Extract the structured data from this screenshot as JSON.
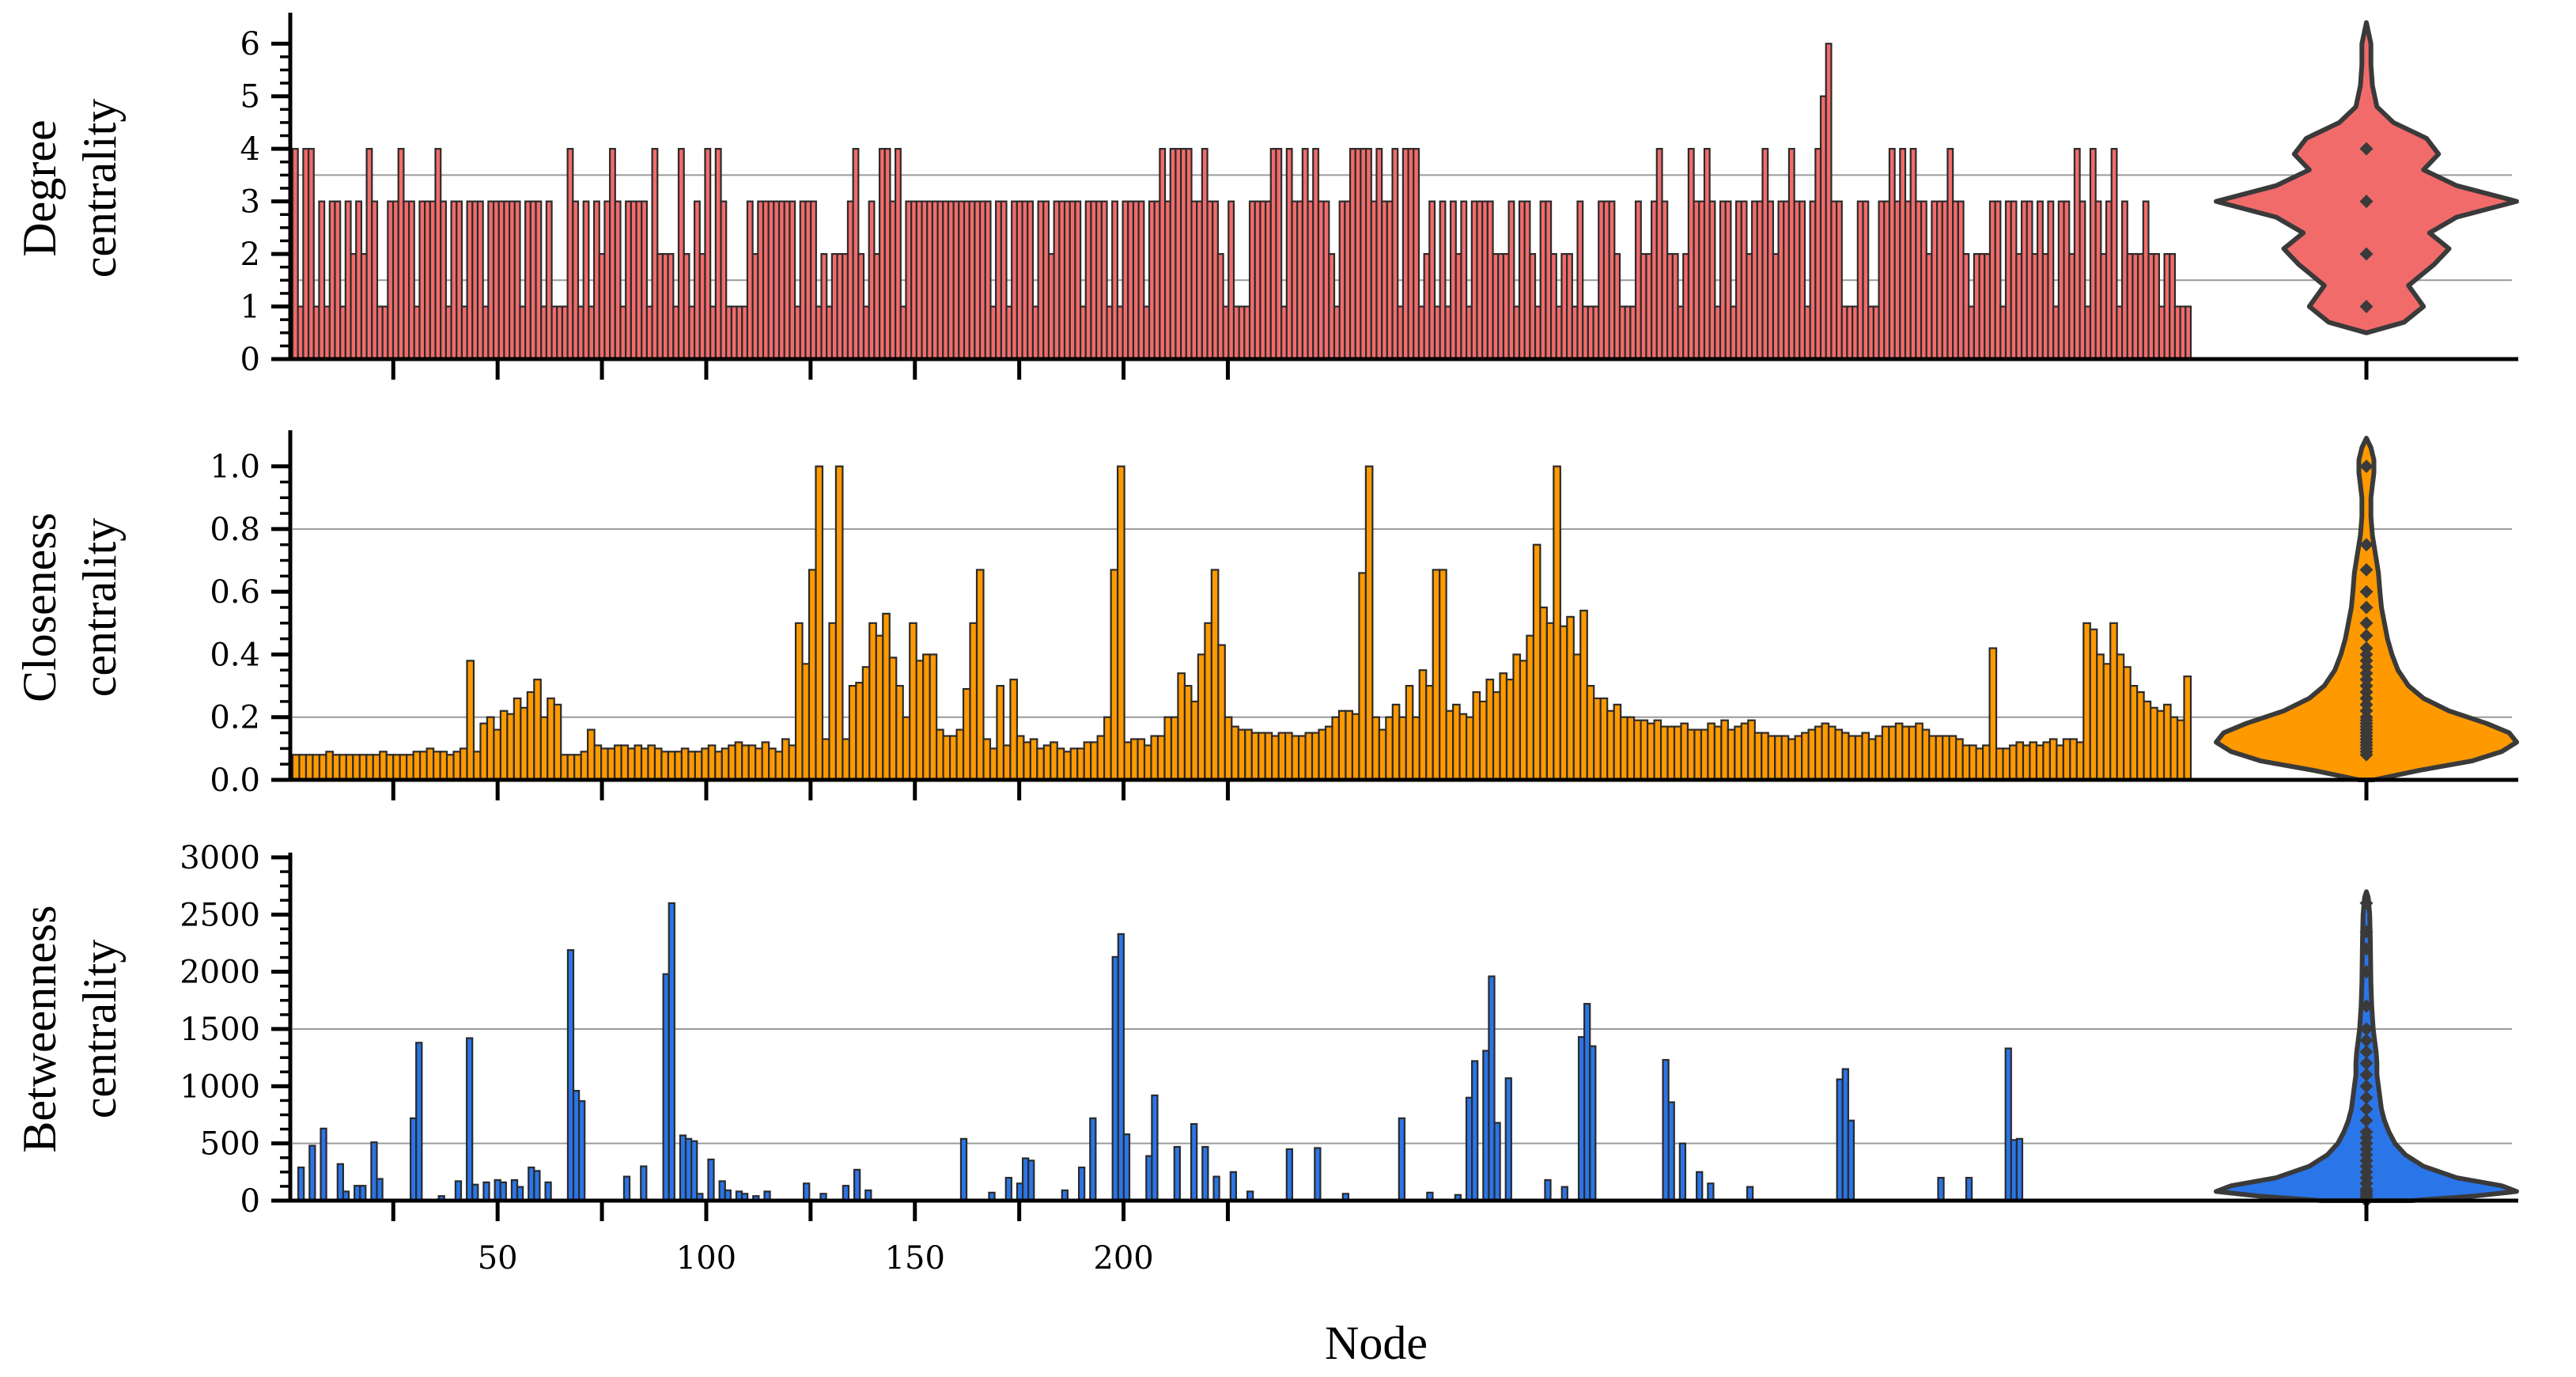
{
  "figure": {
    "xlabel": "Node",
    "x_tick_labels": [
      "50",
      "100",
      "150",
      "200"
    ]
  },
  "chart_data": [
    {
      "type": "bar",
      "id": "degree",
      "ylabel_lines": [
        "Degree",
        "centrality"
      ],
      "ylim": [
        0,
        6.5
      ],
      "yticks": [
        0,
        1,
        2,
        3,
        4,
        5,
        6
      ],
      "ytick_labels": [
        "0",
        "1",
        "2",
        "3",
        "4",
        "5",
        "6"
      ],
      "gridlines": [
        1.5,
        3.5
      ],
      "color": "#F26B6B",
      "x_start": 1,
      "values": [
        4,
        1,
        4,
        4,
        1,
        3,
        1,
        3,
        3,
        1,
        3,
        2,
        3,
        2,
        4,
        3,
        1,
        1,
        3,
        3,
        4,
        3,
        3,
        1,
        3,
        3,
        3,
        4,
        3,
        1,
        3,
        3,
        1,
        3,
        3,
        3,
        1,
        3,
        3,
        3,
        3,
        3,
        3,
        1,
        3,
        3,
        3,
        1,
        3,
        1,
        1,
        1,
        4,
        3,
        1,
        3,
        1,
        3,
        2,
        3,
        4,
        3,
        1,
        3,
        3,
        3,
        3,
        1,
        4,
        2,
        2,
        2,
        1,
        4,
        2,
        1,
        3,
        2,
        4,
        1,
        4,
        3,
        1,
        1,
        1,
        1,
        3,
        2,
        3,
        3,
        3,
        3,
        3,
        3,
        3,
        1,
        3,
        3,
        3,
        1,
        2,
        1,
        2,
        2,
        2,
        3,
        4,
        2,
        1,
        3,
        2,
        4,
        4,
        3,
        4,
        1,
        3,
        3,
        3,
        3,
        3,
        3,
        3,
        3,
        3,
        3,
        3,
        3,
        3,
        3,
        3,
        3,
        1,
        3,
        3,
        1,
        3,
        3,
        3,
        3,
        1,
        3,
        3,
        2,
        3,
        3,
        3,
        3,
        3,
        1,
        3,
        3,
        3,
        3,
        1,
        3,
        1,
        3,
        3,
        3,
        3,
        1,
        3,
        3,
        4,
        3,
        4,
        4,
        4,
        4,
        3,
        3,
        4,
        3,
        3,
        2,
        1,
        3,
        1,
        1,
        1,
        3,
        3,
        3,
        3,
        4,
        4,
        1,
        4,
        3,
        3,
        4,
        3,
        4,
        3,
        3,
        2,
        1,
        3,
        3,
        4,
        4,
        4,
        4,
        3,
        4,
        3,
        3,
        4,
        1,
        4,
        4,
        4,
        1,
        2,
        3,
        1,
        3,
        1,
        3,
        2,
        3,
        1,
        3,
        3,
        3,
        3,
        2,
        2,
        2,
        3,
        1,
        3,
        3,
        2,
        1,
        3,
        3,
        2,
        1,
        2,
        2,
        1,
        3,
        1,
        1,
        1,
        3,
        3,
        3,
        2,
        1,
        1,
        1,
        3,
        2,
        2,
        3,
        4,
        3,
        2,
        2,
        1,
        2,
        4,
        3,
        3,
        4,
        3,
        1,
        3,
        3,
        1,
        3,
        3,
        2,
        3,
        3,
        4,
        3,
        2,
        3,
        3,
        4,
        3,
        3,
        1,
        3,
        4,
        5,
        6,
        3,
        3,
        1,
        1,
        1,
        3,
        3,
        1,
        1,
        3,
        3,
        4,
        3,
        4,
        3,
        4,
        3,
        3,
        2,
        3,
        3,
        3,
        4,
        3,
        3,
        2,
        1,
        2,
        2,
        2,
        3,
        3,
        1,
        3,
        3,
        2,
        3,
        3,
        2,
        3,
        2,
        3,
        1,
        3,
        3,
        2,
        4,
        3,
        1,
        4,
        3,
        2,
        3,
        4,
        1,
        3,
        2,
        2,
        2,
        3,
        2,
        2,
        1,
        2,
        2,
        1,
        1,
        1
      ],
      "violin": {
        "points": [
          1,
          2,
          3,
          4
        ],
        "extent": [
          0.5,
          6.4
        ],
        "profile": [
          [
            0.5,
            0.0
          ],
          [
            0.7,
            0.25
          ],
          [
            1.0,
            0.38
          ],
          [
            1.4,
            0.28
          ],
          [
            1.8,
            0.45
          ],
          [
            2.1,
            0.55
          ],
          [
            2.4,
            0.42
          ],
          [
            2.7,
            0.6
          ],
          [
            3.0,
            1.0
          ],
          [
            3.3,
            0.6
          ],
          [
            3.6,
            0.38
          ],
          [
            3.9,
            0.48
          ],
          [
            4.2,
            0.4
          ],
          [
            4.5,
            0.18
          ],
          [
            4.8,
            0.07
          ],
          [
            5.2,
            0.04
          ],
          [
            5.6,
            0.03
          ],
          [
            6.0,
            0.03
          ],
          [
            6.4,
            0.0
          ]
        ]
      }
    },
    {
      "type": "bar",
      "id": "closeness",
      "ylabel_lines": [
        "Closeness",
        "centrality"
      ],
      "ylim": [
        0,
        1.1
      ],
      "yticks": [
        0,
        0.2,
        0.4,
        0.6,
        0.8,
        1.0
      ],
      "ytick_labels": [
        "0.0",
        "0.2",
        "0.4",
        "0.6",
        "0.8",
        "1.0"
      ],
      "gridlines": [
        0.2,
        0.8
      ],
      "color": "#FF9900",
      "x_start": 1,
      "values": [
        0.08,
        0.08,
        0.08,
        0.08,
        0.08,
        0.09,
        0.08,
        0.08,
        0.08,
        0.08,
        0.08,
        0.08,
        0.08,
        0.09,
        0.08,
        0.08,
        0.08,
        0.08,
        0.09,
        0.09,
        0.1,
        0.09,
        0.09,
        0.08,
        0.09,
        0.1,
        0.38,
        0.09,
        0.18,
        0.2,
        0.16,
        0.22,
        0.21,
        0.26,
        0.23,
        0.28,
        0.32,
        0.2,
        0.26,
        0.24,
        0.08,
        0.08,
        0.08,
        0.09,
        0.16,
        0.11,
        0.1,
        0.1,
        0.11,
        0.11,
        0.1,
        0.11,
        0.1,
        0.11,
        0.1,
        0.09,
        0.09,
        0.09,
        0.1,
        0.09,
        0.09,
        0.1,
        0.11,
        0.09,
        0.1,
        0.11,
        0.12,
        0.11,
        0.11,
        0.1,
        0.12,
        0.1,
        0.09,
        0.13,
        0.11,
        0.5,
        0.37,
        0.67,
        1.0,
        0.13,
        0.5,
        1.0,
        0.13,
        0.3,
        0.31,
        0.36,
        0.5,
        0.46,
        0.53,
        0.39,
        0.3,
        0.2,
        0.5,
        0.38,
        0.4,
        0.4,
        0.16,
        0.14,
        0.14,
        0.16,
        0.29,
        0.5,
        0.67,
        0.13,
        0.1,
        0.3,
        0.11,
        0.32,
        0.14,
        0.12,
        0.13,
        0.1,
        0.11,
        0.12,
        0.1,
        0.09,
        0.1,
        0.1,
        0.12,
        0.12,
        0.14,
        0.2,
        0.67,
        1.0,
        0.12,
        0.13,
        0.13,
        0.11,
        0.14,
        0.14,
        0.2,
        0.2,
        0.34,
        0.3,
        0.25,
        0.4,
        0.5,
        0.67,
        0.43,
        0.2,
        0.17,
        0.16,
        0.16,
        0.15,
        0.15,
        0.15,
        0.14,
        0.15,
        0.15,
        0.14,
        0.14,
        0.15,
        0.15,
        0.16,
        0.17,
        0.2,
        0.22,
        0.22,
        0.21,
        0.66,
        1.0,
        0.2,
        0.16,
        0.2,
        0.24,
        0.2,
        0.3,
        0.2,
        0.35,
        0.3,
        0.67,
        0.67,
        0.22,
        0.24,
        0.21,
        0.2,
        0.28,
        0.25,
        0.32,
        0.28,
        0.34,
        0.32,
        0.4,
        0.38,
        0.46,
        0.75,
        0.55,
        0.5,
        1.0,
        0.49,
        0.52,
        0.4,
        0.54,
        0.3,
        0.26,
        0.26,
        0.22,
        0.24,
        0.2,
        0.2,
        0.19,
        0.19,
        0.18,
        0.19,
        0.17,
        0.17,
        0.17,
        0.18,
        0.16,
        0.16,
        0.16,
        0.18,
        0.17,
        0.19,
        0.16,
        0.17,
        0.18,
        0.19,
        0.15,
        0.15,
        0.14,
        0.14,
        0.14,
        0.13,
        0.14,
        0.15,
        0.16,
        0.17,
        0.18,
        0.17,
        0.16,
        0.15,
        0.14,
        0.14,
        0.15,
        0.13,
        0.14,
        0.17,
        0.17,
        0.18,
        0.17,
        0.17,
        0.18,
        0.16,
        0.14,
        0.14,
        0.14,
        0.14,
        0.13,
        0.11,
        0.11,
        0.1,
        0.11,
        0.42,
        0.1,
        0.1,
        0.11,
        0.12,
        0.11,
        0.12,
        0.11,
        0.12,
        0.13,
        0.11,
        0.13,
        0.13,
        0.12,
        0.5,
        0.48,
        0.4,
        0.37,
        0.5,
        0.4,
        0.36,
        0.3,
        0.28,
        0.25,
        0.23,
        0.22,
        0.24,
        0.2,
        0.19,
        0.33
      ],
      "violin": {
        "points": [
          0.08,
          0.09,
          0.1,
          0.11,
          0.12,
          0.13,
          0.14,
          0.15,
          0.16,
          0.17,
          0.18,
          0.19,
          0.2,
          0.22,
          0.24,
          0.26,
          0.28,
          0.3,
          0.32,
          0.34,
          0.36,
          0.38,
          0.4,
          0.42,
          0.46,
          0.5,
          0.55,
          0.6,
          0.67,
          0.75,
          1.0
        ],
        "extent": [
          0.0,
          1.09
        ],
        "profile": [
          [
            0.0,
            0.05
          ],
          [
            0.03,
            0.35
          ],
          [
            0.06,
            0.7
          ],
          [
            0.09,
            0.9
          ],
          [
            0.12,
            1.0
          ],
          [
            0.15,
            0.95
          ],
          [
            0.18,
            0.8
          ],
          [
            0.22,
            0.55
          ],
          [
            0.26,
            0.38
          ],
          [
            0.3,
            0.28
          ],
          [
            0.35,
            0.21
          ],
          [
            0.4,
            0.17
          ],
          [
            0.45,
            0.14
          ],
          [
            0.5,
            0.12
          ],
          [
            0.55,
            0.1
          ],
          [
            0.6,
            0.09
          ],
          [
            0.66,
            0.08
          ],
          [
            0.72,
            0.06
          ],
          [
            0.78,
            0.04
          ],
          [
            0.84,
            0.03
          ],
          [
            0.9,
            0.03
          ],
          [
            0.94,
            0.04
          ],
          [
            0.98,
            0.05
          ],
          [
            1.02,
            0.05
          ],
          [
            1.06,
            0.03
          ],
          [
            1.09,
            0.0
          ]
        ]
      }
    },
    {
      "type": "bar",
      "id": "betweenness",
      "ylabel_lines": [
        "Betweenness",
        "centrality"
      ],
      "ylim": [
        0,
        3000
      ],
      "yticks": [
        0,
        500,
        1000,
        1500,
        2000,
        2500,
        3000
      ],
      "ytick_labels": [
        "0",
        "500",
        "1000",
        "1500",
        "2000",
        "2500",
        "3000"
      ],
      "gridlines": [
        500,
        1500
      ],
      "color": "#2A75E8",
      "x_start": 1,
      "values": [
        0,
        290,
        0,
        480,
        0,
        630,
        0,
        0,
        320,
        80,
        0,
        130,
        130,
        0,
        510,
        190,
        0,
        0,
        0,
        0,
        0,
        720,
        1380,
        0,
        0,
        0,
        40,
        0,
        0,
        170,
        0,
        1420,
        140,
        0,
        160,
        0,
        180,
        160,
        0,
        180,
        120,
        0,
        290,
        260,
        0,
        160,
        0,
        0,
        0,
        2190,
        960,
        870,
        0,
        0,
        0,
        0,
        0,
        0,
        0,
        210,
        0,
        0,
        300,
        0,
        0,
        0,
        1980,
        2600,
        0,
        570,
        540,
        520,
        60,
        0,
        360,
        0,
        170,
        90,
        0,
        80,
        60,
        0,
        40,
        0,
        80,
        0,
        0,
        0,
        0,
        0,
        0,
        150,
        0,
        0,
        60,
        0,
        0,
        0,
        130,
        0,
        270,
        0,
        90,
        0,
        0,
        0,
        0,
        0,
        0,
        0,
        0,
        0,
        0,
        0,
        0,
        0,
        0,
        0,
        0,
        540,
        0,
        0,
        0,
        0,
        70,
        0,
        0,
        200,
        0,
        150,
        370,
        350,
        0,
        0,
        0,
        0,
        0,
        90,
        0,
        0,
        290,
        0,
        720,
        0,
        0,
        0,
        2130,
        2330,
        580,
        0,
        0,
        0,
        390,
        920,
        0,
        0,
        0,
        470,
        0,
        0,
        670,
        0,
        470,
        0,
        210,
        0,
        0,
        250,
        0,
        0,
        80,
        0,
        0,
        0,
        0,
        0,
        0,
        450,
        0,
        0,
        0,
        0,
        460,
        0,
        0,
        0,
        0,
        60,
        0,
        0,
        0,
        0,
        0,
        0,
        0,
        0,
        0,
        720,
        0,
        0,
        0,
        0,
        70,
        0,
        0,
        0,
        0,
        50,
        0,
        900,
        1220,
        0,
        1310,
        1960,
        680,
        0,
        1070,
        0,
        0,
        0,
        0,
        0,
        0,
        180,
        0,
        0,
        120,
        0,
        0,
        1430,
        1720,
        1350,
        0,
        0,
        0,
        0,
        0,
        0,
        0,
        0,
        0,
        0,
        0,
        0,
        1230,
        860,
        0,
        500,
        0,
        0,
        250,
        0,
        150,
        0,
        0,
        0,
        0,
        0,
        0,
        120,
        0,
        0,
        0,
        0,
        0,
        0,
        0,
        0,
        0,
        0,
        0,
        0,
        0,
        0,
        0,
        1060,
        1150,
        700,
        0,
        0,
        0,
        0,
        0,
        0,
        0,
        0,
        0,
        0,
        0,
        0,
        0,
        0,
        0,
        200,
        0,
        0,
        0,
        0,
        200,
        0,
        0,
        0,
        0,
        0,
        0,
        1330,
        530,
        540,
        0,
        0,
        0,
        0,
        0,
        0,
        0,
        0,
        0,
        0,
        0,
        0,
        0,
        0,
        0,
        0,
        0,
        0,
        0,
        0,
        0,
        0,
        0,
        0,
        0,
        0,
        0,
        0,
        0,
        0
      ],
      "violin": {
        "points": [
          0,
          20,
          40,
          60,
          80,
          100,
          150,
          200,
          250,
          300,
          350,
          400,
          450,
          500,
          550,
          600,
          700,
          800,
          900,
          1000,
          1100,
          1200,
          1300,
          1400,
          1500,
          1700,
          2000,
          2200,
          2350,
          2600
        ],
        "extent": [
          0,
          2700
        ],
        "profile": [
          [
            0,
            0.3
          ],
          [
            40,
            0.72
          ],
          [
            80,
            1.0
          ],
          [
            130,
            0.9
          ],
          [
            200,
            0.6
          ],
          [
            300,
            0.38
          ],
          [
            400,
            0.26
          ],
          [
            500,
            0.19
          ],
          [
            600,
            0.15
          ],
          [
            700,
            0.12
          ],
          [
            800,
            0.1
          ],
          [
            900,
            0.09
          ],
          [
            1000,
            0.08
          ],
          [
            1100,
            0.07
          ],
          [
            1200,
            0.07
          ],
          [
            1300,
            0.065
          ],
          [
            1400,
            0.055
          ],
          [
            1500,
            0.045
          ],
          [
            1700,
            0.035
          ],
          [
            1900,
            0.03
          ],
          [
            2100,
            0.028
          ],
          [
            2300,
            0.026
          ],
          [
            2500,
            0.022
          ],
          [
            2650,
            0.012
          ],
          [
            2700,
            0.0
          ]
        ]
      }
    }
  ]
}
